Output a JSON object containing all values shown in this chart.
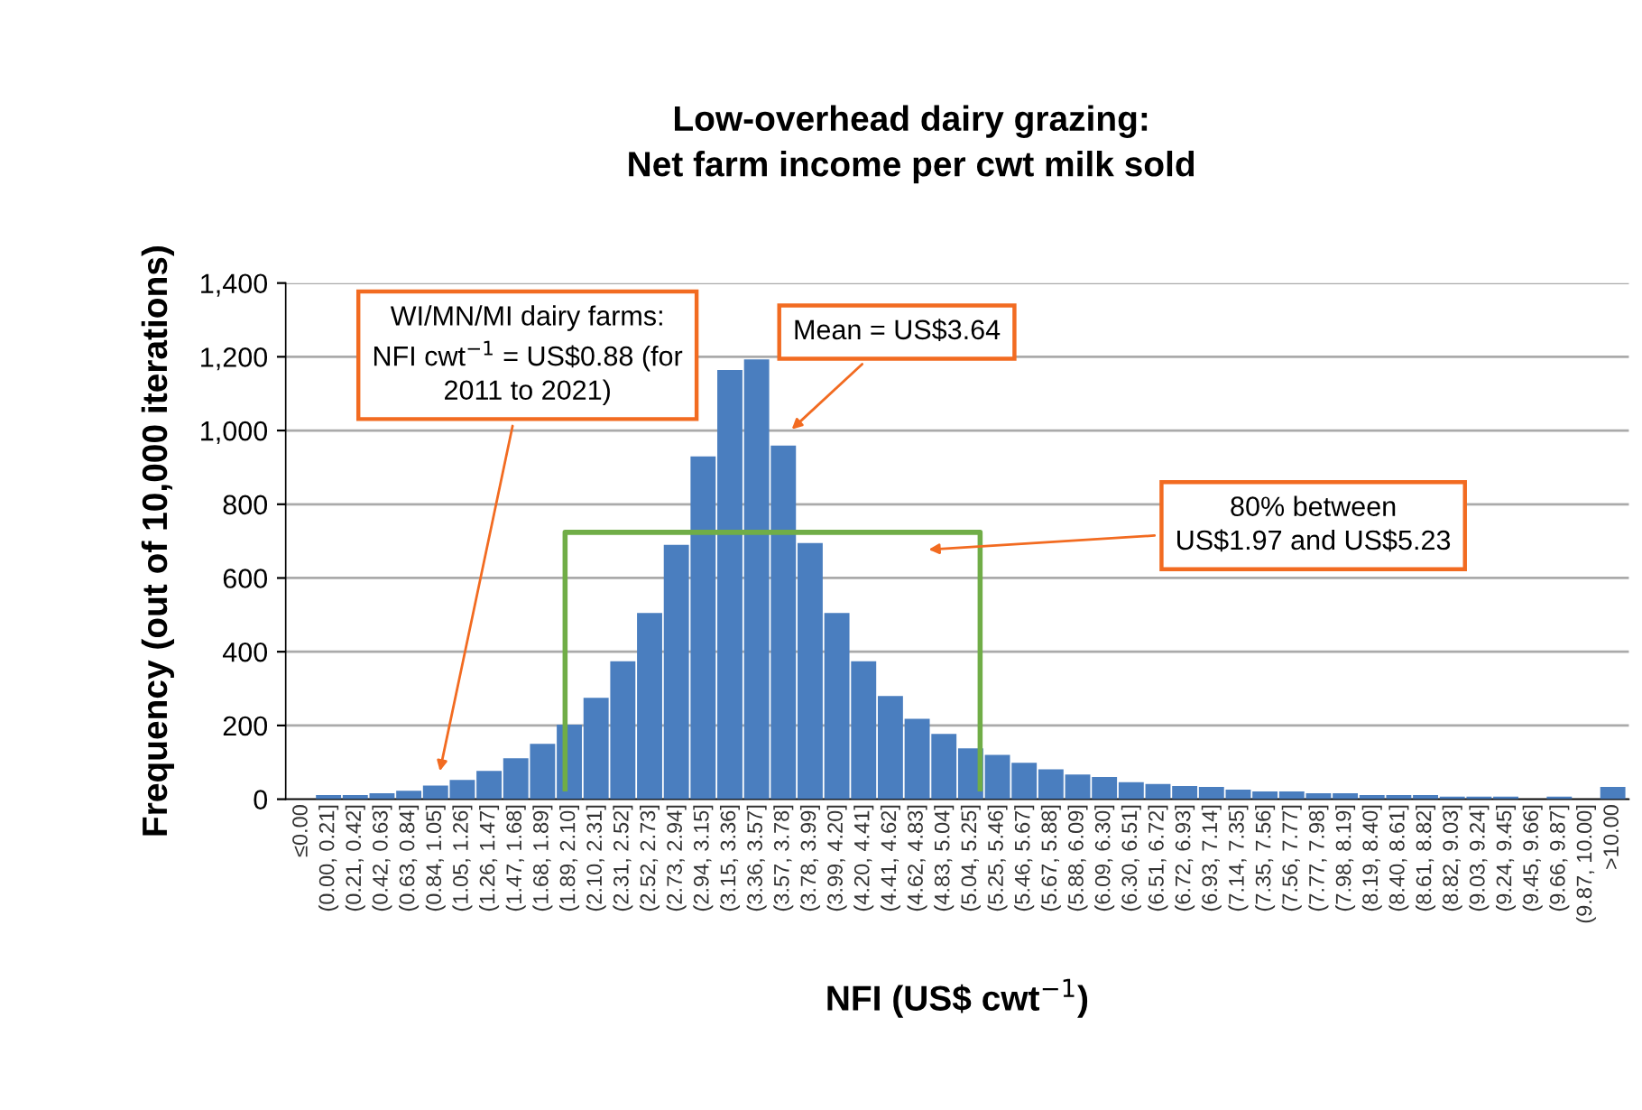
{
  "chart_data": {
    "type": "bar",
    "title": "Low-overhead dairy grazing:\nNet farm income per cwt milk sold",
    "xlabel": "NFI (US$ cwt$^{−1}$)",
    "ylabel": "Frequency (out of 10,000 iterations)",
    "categories": [
      "≤0.00",
      "(0.00, 0.21]",
      "(0.21, 0.42]",
      "(0.42, 0.63]",
      "(0.63, 0.84]",
      "(0.84, 1.05]",
      "(1.05, 1.26]",
      "(1.26, 1.47]",
      "(1.47, 1.68]",
      "(1.68, 1.89]",
      "(1.89, 2.10]",
      "(2.10, 2.31]",
      "(2.31, 2.52]",
      "(2.52, 2.73]",
      "(2.73, 2.94]",
      "(2.94, 3.15]",
      "(3.15, 3.36]",
      "(3.36, 3.57]",
      "(3.57, 3.78]",
      "(3.78, 3.99]",
      "(3.99, 4.20]",
      "(4.20, 4.41]",
      "(4.41, 4.62]",
      "(4.62, 4.83]",
      "(4.83, 5.04]",
      "(5.04, 5.25]",
      "(5.25, 5.46]",
      "(5.46, 5.67]",
      "(5.67, 5.88]",
      "(5.88, 6.09]",
      "(6.09, 6.30]",
      "(6.30, 6.51]",
      "(6.51, 6.72]",
      "(6.72, 6.93]",
      "(6.93, 7.14]",
      "(7.14, 7.35]",
      "(7.35, 7.56]",
      "(7.56, 7.77]",
      "(7.77, 7.98]",
      "(7.98, 8.19]",
      "(8.19, 8.40]",
      "(8.40, 8.61]",
      "(8.61, 8.82]",
      "(8.82, 9.03]",
      "(9.03, 9.24]",
      "(9.24, 9.45]",
      "(9.45, 9.66]",
      "(9.66, 9.87]",
      "(9.87, 10.00]",
      ">10.00"
    ],
    "values": [
      0,
      11,
      11,
      16,
      23,
      37,
      52,
      77,
      111,
      150,
      202,
      275,
      374,
      505,
      690,
      930,
      1164,
      1193,
      959,
      695,
      505,
      374,
      280,
      218,
      177,
      138,
      120,
      99,
      81,
      67,
      60,
      46,
      41,
      36,
      33,
      26,
      21,
      21,
      16,
      16,
      11,
      11,
      11,
      7,
      7,
      7,
      0,
      7,
      0,
      33
    ],
    "color": "#4a7ebf",
    "ylim": [
      0,
      1400
    ],
    "yticks": [
      {
        "value": 0,
        "label": "0"
      },
      {
        "value": 200,
        "label": "200"
      },
      {
        "value": 400,
        "label": "400"
      },
      {
        "value": 600,
        "label": "600"
      },
      {
        "value": 800,
        "label": "800"
      },
      {
        "value": 1000,
        "label": "1,000"
      },
      {
        "value": 1200,
        "label": "1,200"
      },
      {
        "value": 1400,
        "label": "1,400"
      }
    ],
    "grid": "y",
    "annotations": [
      "WI/MN/MI dairy farms:\nNFI cwt$^{−1}$ = US$0.88 (for\n2011 to 2021)",
      "Mean = US$3.64",
      "80% between\nUS$1.97 and US$5.23"
    ]
  }
}
